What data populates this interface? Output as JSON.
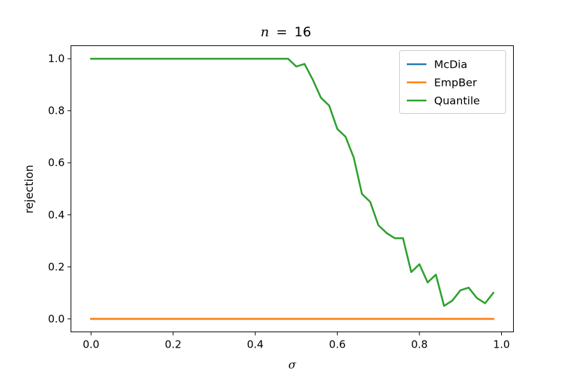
{
  "chart_data": {
    "type": "line",
    "title": {
      "variable": "n",
      "operator": "=",
      "value": "16"
    },
    "xlabel": "σ",
    "ylabel": "rejection",
    "xlim": [
      -0.049,
      1.029
    ],
    "ylim": [
      -0.05,
      1.05
    ],
    "xticks": [
      0.0,
      0.2,
      0.4,
      0.6,
      0.8,
      1.0
    ],
    "xtick_labels": [
      "0.0",
      "0.2",
      "0.4",
      "0.6",
      "0.8",
      "1.0"
    ],
    "yticks": [
      0.0,
      0.2,
      0.4,
      0.6,
      0.8,
      1.0
    ],
    "ytick_labels": [
      "0.0",
      "0.2",
      "0.4",
      "0.6",
      "0.8",
      "1.0"
    ],
    "grid": false,
    "legend_position": "top-right",
    "x": [
      0.0,
      0.02,
      0.04,
      0.06,
      0.08,
      0.1,
      0.12,
      0.14,
      0.16,
      0.18,
      0.2,
      0.22,
      0.24,
      0.26,
      0.28,
      0.3,
      0.32,
      0.34,
      0.36,
      0.38,
      0.4,
      0.42,
      0.44,
      0.46,
      0.48,
      0.5,
      0.52,
      0.54,
      0.56,
      0.58,
      0.6,
      0.62,
      0.64,
      0.66,
      0.68,
      0.7,
      0.72,
      0.74,
      0.76,
      0.78,
      0.8,
      0.82,
      0.84,
      0.86,
      0.88,
      0.9,
      0.92,
      0.94,
      0.96,
      0.98
    ],
    "series": [
      {
        "name": "McDia",
        "color": "#1f77b4",
        "values": [
          0,
          0,
          0,
          0,
          0,
          0,
          0,
          0,
          0,
          0,
          0,
          0,
          0,
          0,
          0,
          0,
          0,
          0,
          0,
          0,
          0,
          0,
          0,
          0,
          0,
          0,
          0,
          0,
          0,
          0,
          0,
          0,
          0,
          0,
          0,
          0,
          0,
          0,
          0,
          0,
          0,
          0,
          0,
          0,
          0,
          0,
          0,
          0,
          0,
          0
        ]
      },
      {
        "name": "EmpBer",
        "color": "#ff7f0e",
        "values": [
          0,
          0,
          0,
          0,
          0,
          0,
          0,
          0,
          0,
          0,
          0,
          0,
          0,
          0,
          0,
          0,
          0,
          0,
          0,
          0,
          0,
          0,
          0,
          0,
          0,
          0,
          0,
          0,
          0,
          0,
          0,
          0,
          0,
          0,
          0,
          0,
          0,
          0,
          0,
          0,
          0,
          0,
          0,
          0,
          0,
          0,
          0,
          0,
          0,
          0
        ]
      },
      {
        "name": "Quantile",
        "color": "#2ca02c",
        "values": [
          1,
          1,
          1,
          1,
          1,
          1,
          1,
          1,
          1,
          1,
          1,
          1,
          1,
          1,
          1,
          1,
          1,
          1,
          1,
          1,
          1,
          1,
          1,
          1,
          1,
          0.97,
          0.98,
          0.92,
          0.85,
          0.82,
          0.73,
          0.7,
          0.62,
          0.48,
          0.45,
          0.36,
          0.33,
          0.31,
          0.31,
          0.18,
          0.21,
          0.14,
          0.17,
          0.05,
          0.07,
          0.11,
          0.12,
          0.08,
          0.06,
          0.1
        ]
      }
    ]
  }
}
